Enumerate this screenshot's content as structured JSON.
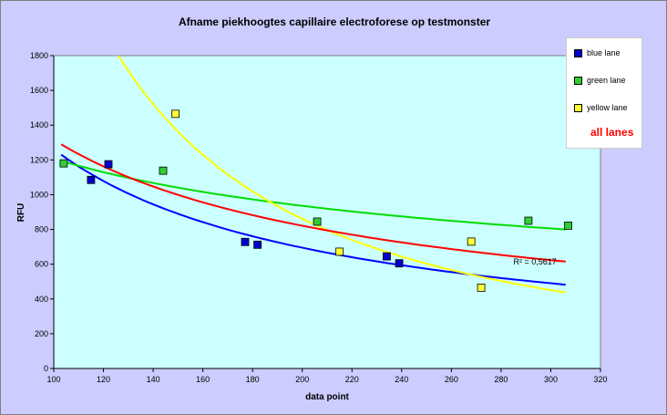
{
  "chart_data": {
    "type": "scatter",
    "title": "Afname piekhoogtes capillaire electroforese op testmonster",
    "xlabel": "data point",
    "ylabel": "RFU",
    "xlim": [
      100,
      320
    ],
    "ylim": [
      0,
      1800
    ],
    "x_ticks": [
      "100",
      "120",
      "140",
      "160",
      "180",
      "200",
      "220",
      "240",
      "260",
      "280",
      "300",
      "320"
    ],
    "y_ticks": [
      "0",
      "200",
      "400",
      "600",
      "800",
      "1000",
      "1200",
      "1400",
      "1600",
      "1800"
    ],
    "plot_background": "#ccffff",
    "grid": false,
    "legend_position": "right",
    "series": [
      {
        "name": "blue lane",
        "color": "#0000cc",
        "points": [
          [
            115,
            1085
          ],
          [
            122,
            1175
          ],
          [
            177,
            728
          ],
          [
            182,
            712
          ],
          [
            234,
            645
          ],
          [
            239,
            605
          ]
        ],
        "trend": {
          "type": "power",
          "x_range": [
            103,
            306
          ],
          "y_start": 1230,
          "y_end": 482,
          "color": "#0000ff"
        }
      },
      {
        "name": "green lane",
        "color": "#33cc33",
        "points": [
          [
            104,
            1180
          ],
          [
            144,
            1138
          ],
          [
            206,
            845
          ],
          [
            291,
            850
          ],
          [
            307,
            822
          ]
        ],
        "trend": {
          "type": "power",
          "x_range": [
            103,
            306
          ],
          "y_start": 1195,
          "y_end": 800,
          "color": "#00dd00"
        }
      },
      {
        "name": "yellow lane",
        "color": "#ffff33",
        "points": [
          [
            149,
            1465
          ],
          [
            215,
            672
          ],
          [
            268,
            730
          ],
          [
            272,
            465
          ]
        ],
        "trend": {
          "type": "power",
          "x_range": [
            126,
            306
          ],
          "y_start": 1800,
          "y_end": 437,
          "color": "#ffff00"
        }
      }
    ],
    "combined_trend": {
      "name": "all lanes",
      "color": "#ff0000",
      "x_range": [
        103,
        306
      ],
      "y_start": 1290,
      "y_end": 615,
      "r2_label": "R² = 0,5617",
      "r2_label_anchor": [
        285,
        615
      ]
    }
  }
}
